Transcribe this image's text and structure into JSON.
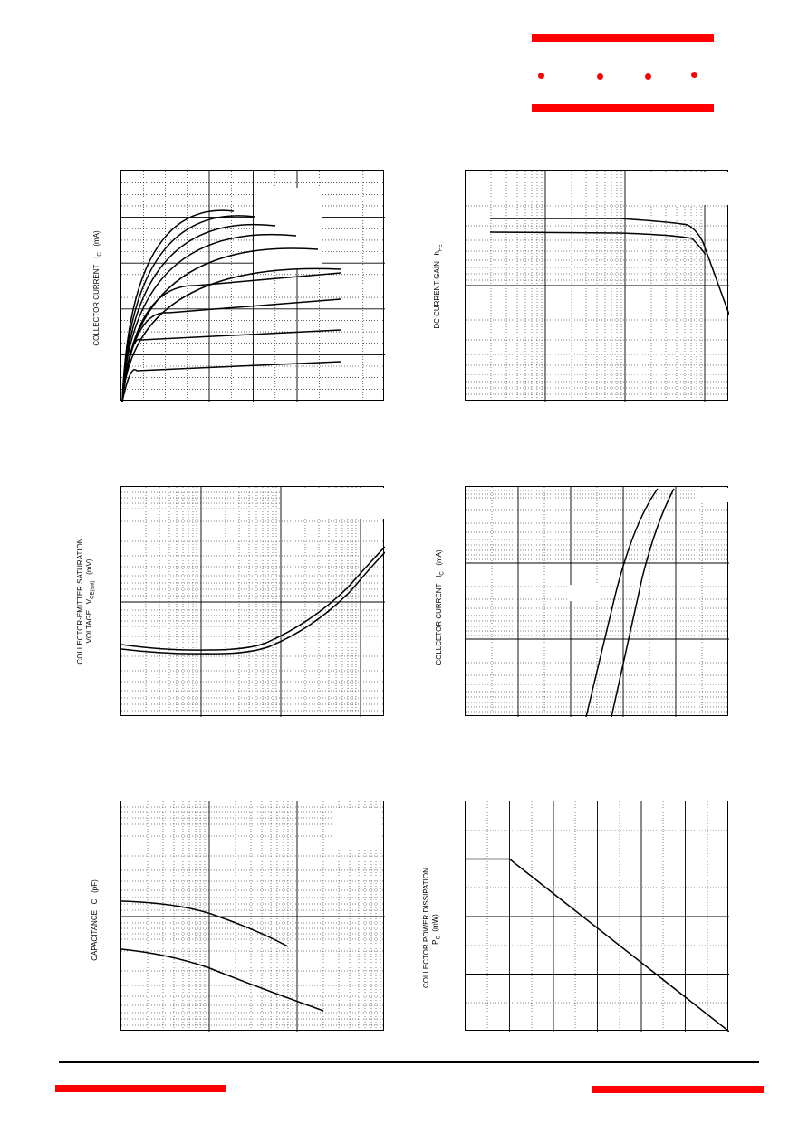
{
  "brand": {
    "accent_color": "#ff0000"
  },
  "charts": {
    "output_characteristics": {
      "ylabel_prefix": "COLLECTOR CURRENT",
      "ylabel_symbol": "I",
      "ylabel_sub": "C",
      "ylabel_unit": "(mA)"
    },
    "dc_gain": {
      "ylabel_prefix": "DC CURRENT GAIN",
      "ylabel_symbol": "h",
      "ylabel_sub": "FE"
    },
    "vce_sat": {
      "ylabel_line1": "COLLECTOR-EMITTER SATURATION",
      "ylabel_prefix": "VOLTAGE",
      "ylabel_symbol": "V",
      "ylabel_sub": "CE(sat)",
      "ylabel_unit": "(mV)"
    },
    "transfer": {
      "ylabel_prefix": "COLLCETOR CURRENT",
      "ylabel_symbol": "I",
      "ylabel_sub": "C",
      "ylabel_unit": "(mA)"
    },
    "capacitance": {
      "ylabel_prefix": "CAPACITANCE",
      "ylabel_symbol": "C",
      "ylabel_unit": "(pF)"
    },
    "power_derating": {
      "ylabel_line1": "COLLECTOR POWER DISSIPATION",
      "ylabel_symbol": "P",
      "ylabel_sub": "C",
      "ylabel_unit": "(mW)"
    }
  }
}
